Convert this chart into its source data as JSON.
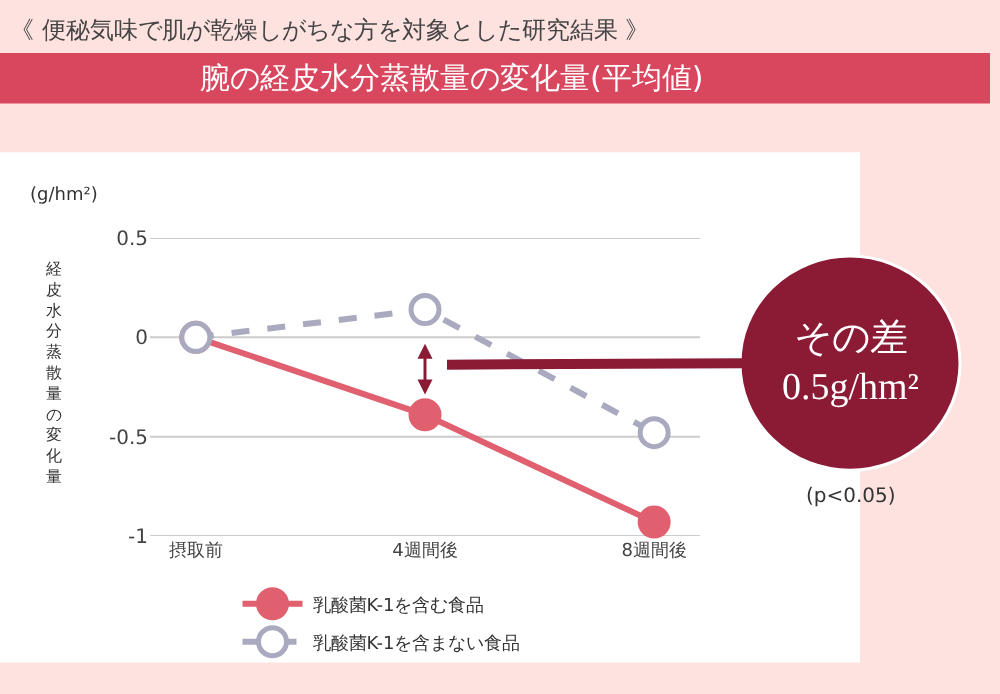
{
  "chart_data": {
    "type": "line",
    "title": "腕の経皮水分蒸散量の変化量(平均値)",
    "subtitle": "《 便秘気味で肌が乾燥しがちな方を対象とした研究結果 》",
    "ylabel": "経皮水分蒸散量の変化量",
    "categories": [
      "摂取前",
      "4週間後",
      "8週間後"
    ],
    "series": [
      {
        "name": "乳酸菌K-1を含む食品",
        "color": "#e0606f",
        "values": [
          0,
          -0.39,
          -0.93
        ],
        "line_style": "solid"
      },
      {
        "name": "乳酸菌K-1を含まない食品",
        "color": "#a9a9c0",
        "values": [
          0,
          0.14,
          -0.48
        ],
        "line_style": "dashed"
      }
    ],
    "ylim": [
      -1,
      0.5
    ],
    "yticks": [
      0.5,
      0,
      -0.5,
      -1
    ],
    "grid": "y",
    "legend": "bottom",
    "marker": "circle",
    "annotations": [
      "(g/hm²)",
      "その差\n0.5g/hm²",
      "(p<0.05)"
    ]
  }
}
